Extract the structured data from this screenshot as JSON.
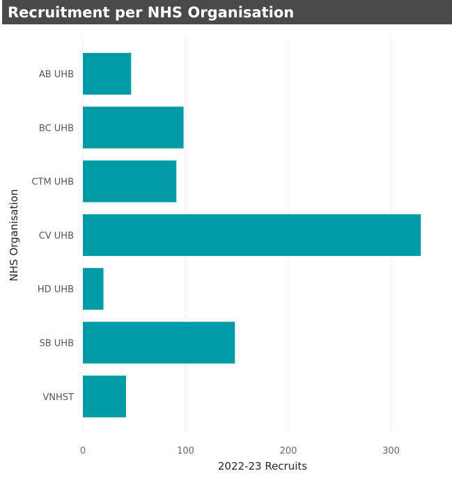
{
  "title": "Recruitment per NHS Organisation",
  "colors": {
    "bar": "#009ca6",
    "title_bg": "#4a4a4a",
    "grid": "#cccccc"
  },
  "chart_data": {
    "type": "bar",
    "orientation": "horizontal",
    "title": "Recruitment per NHS Organisation",
    "xlabel": "2022-23 Recruits",
    "ylabel": "NHS Organisation",
    "categories": [
      "AB UHB",
      "BC UHB",
      "CTM UHB",
      "CV UHB",
      "HD UHB",
      "SB UHB",
      "VNHST"
    ],
    "values": [
      47,
      98,
      91,
      329,
      20,
      148,
      42
    ],
    "xlim": [
      0,
      360
    ],
    "xticks": [
      0,
      100,
      200,
      300
    ],
    "grid": "vertical dotted",
    "legend": "none"
  }
}
